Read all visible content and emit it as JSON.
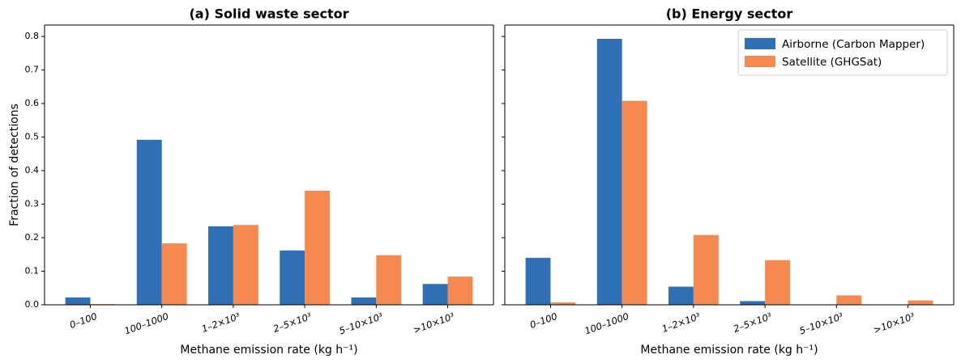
{
  "chart_data": [
    {
      "type": "bar",
      "title": "(a) Solid waste sector",
      "xlabel": "Methane emission rate (kg h⁻¹)",
      "ylabel": "Fraction of detections",
      "categories": [
        "0–100",
        "100–1000",
        "1–2×10³",
        "2–5×10³",
        "5–10×10³",
        ">10×10³"
      ],
      "series": [
        {
          "color": "#2e6fb6",
          "values": [
            0.022,
            0.492,
            0.234,
            0.162,
            0.022,
            0.062
          ]
        },
        {
          "color": "#f5894f",
          "values": [
            0.002,
            0.183,
            0.238,
            0.34,
            0.148,
            0.084
          ]
        }
      ],
      "ylim": [
        0,
        0.834
      ],
      "yticks": [
        {
          "value": 0,
          "label": "0.0"
        },
        0.1,
        0.2,
        0.3,
        0.4,
        0.5,
        0.6,
        0.7,
        0.8
      ]
    },
    {
      "type": "bar",
      "title": "(b) Energy sector",
      "xlabel": "Methane emission rate (kg h⁻¹)",
      "categories": [
        "0–100",
        "100–1000",
        "1–2×10³",
        "2–5×10³",
        "5–10×10³",
        ">10×10³"
      ],
      "series": [
        {
          "name": "Airborne (Carbon Mapper)",
          "color": "#2e6fb6",
          "values": [
            0.14,
            0.793,
            0.054,
            0.011,
            0,
            0
          ]
        },
        {
          "name": "Satellite (GHGSat)",
          "color": "#f5894f",
          "values": [
            0.007,
            0.608,
            0.208,
            0.133,
            0.028,
            0.013
          ]
        }
      ],
      "ylim": [
        0,
        0.834
      ],
      "yticks": [
        0,
        0.1,
        0.2,
        0.3,
        0.4,
        0.5,
        0.6,
        0.7,
        0.8
      ],
      "legend": "upper right"
    }
  ]
}
